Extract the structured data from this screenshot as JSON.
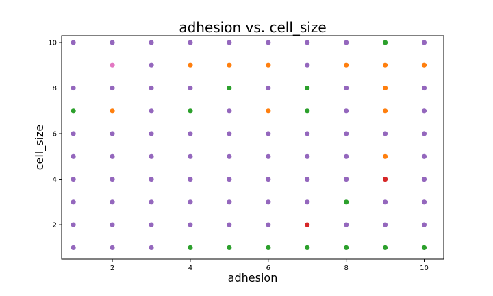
{
  "chart_data": {
    "type": "scatter",
    "title": "adhesion vs. cell_size",
    "xlabel": "adhesion",
    "ylabel": "cell_size",
    "xlim": [
      0.7,
      10.5
    ],
    "ylim": [
      0.5,
      10.3
    ],
    "xticks": [
      2,
      4,
      6,
      8,
      10
    ],
    "yticks": [
      2,
      4,
      6,
      8,
      10
    ],
    "grid": false,
    "colors": {
      "purple": "#9467bd",
      "orange": "#ff7f0e",
      "green": "#2ca02c",
      "red": "#d62728",
      "pink": "#e377c2"
    },
    "points": [
      {
        "x": 1,
        "y": 10,
        "c": "purple"
      },
      {
        "x": 2,
        "y": 10,
        "c": "purple"
      },
      {
        "x": 3,
        "y": 10,
        "c": "purple"
      },
      {
        "x": 4,
        "y": 10,
        "c": "purple"
      },
      {
        "x": 5,
        "y": 10,
        "c": "purple"
      },
      {
        "x": 6,
        "y": 10,
        "c": "purple"
      },
      {
        "x": 7,
        "y": 10,
        "c": "purple"
      },
      {
        "x": 8,
        "y": 10,
        "c": "purple"
      },
      {
        "x": 9,
        "y": 10,
        "c": "green"
      },
      {
        "x": 10,
        "y": 10,
        "c": "purple"
      },
      {
        "x": 2,
        "y": 9,
        "c": "pink"
      },
      {
        "x": 3,
        "y": 9,
        "c": "purple"
      },
      {
        "x": 4,
        "y": 9,
        "c": "orange"
      },
      {
        "x": 5,
        "y": 9,
        "c": "orange"
      },
      {
        "x": 6,
        "y": 9,
        "c": "orange"
      },
      {
        "x": 7,
        "y": 9,
        "c": "purple"
      },
      {
        "x": 8,
        "y": 9,
        "c": "orange"
      },
      {
        "x": 9,
        "y": 9,
        "c": "orange"
      },
      {
        "x": 10,
        "y": 9,
        "c": "orange"
      },
      {
        "x": 1,
        "y": 8,
        "c": "purple"
      },
      {
        "x": 2,
        "y": 8,
        "c": "purple"
      },
      {
        "x": 3,
        "y": 8,
        "c": "purple"
      },
      {
        "x": 4,
        "y": 8,
        "c": "purple"
      },
      {
        "x": 5,
        "y": 8,
        "c": "green"
      },
      {
        "x": 6,
        "y": 8,
        "c": "purple"
      },
      {
        "x": 7,
        "y": 8,
        "c": "green"
      },
      {
        "x": 8,
        "y": 8,
        "c": "purple"
      },
      {
        "x": 9,
        "y": 8,
        "c": "orange"
      },
      {
        "x": 10,
        "y": 8,
        "c": "purple"
      },
      {
        "x": 1,
        "y": 7,
        "c": "green"
      },
      {
        "x": 2,
        "y": 7,
        "c": "orange"
      },
      {
        "x": 3,
        "y": 7,
        "c": "purple"
      },
      {
        "x": 4,
        "y": 7,
        "c": "green"
      },
      {
        "x": 5,
        "y": 7,
        "c": "purple"
      },
      {
        "x": 6,
        "y": 7,
        "c": "orange"
      },
      {
        "x": 7,
        "y": 7,
        "c": "green"
      },
      {
        "x": 8,
        "y": 7,
        "c": "purple"
      },
      {
        "x": 9,
        "y": 7,
        "c": "orange"
      },
      {
        "x": 10,
        "y": 7,
        "c": "purple"
      },
      {
        "x": 1,
        "y": 6,
        "c": "purple"
      },
      {
        "x": 2,
        "y": 6,
        "c": "purple"
      },
      {
        "x": 3,
        "y": 6,
        "c": "purple"
      },
      {
        "x": 4,
        "y": 6,
        "c": "purple"
      },
      {
        "x": 5,
        "y": 6,
        "c": "purple"
      },
      {
        "x": 6,
        "y": 6,
        "c": "purple"
      },
      {
        "x": 7,
        "y": 6,
        "c": "purple"
      },
      {
        "x": 8,
        "y": 6,
        "c": "purple"
      },
      {
        "x": 9,
        "y": 6,
        "c": "purple"
      },
      {
        "x": 10,
        "y": 6,
        "c": "purple"
      },
      {
        "x": 1,
        "y": 5,
        "c": "purple"
      },
      {
        "x": 2,
        "y": 5,
        "c": "purple"
      },
      {
        "x": 3,
        "y": 5,
        "c": "purple"
      },
      {
        "x": 4,
        "y": 5,
        "c": "purple"
      },
      {
        "x": 5,
        "y": 5,
        "c": "purple"
      },
      {
        "x": 6,
        "y": 5,
        "c": "purple"
      },
      {
        "x": 7,
        "y": 5,
        "c": "purple"
      },
      {
        "x": 8,
        "y": 5,
        "c": "purple"
      },
      {
        "x": 9,
        "y": 5,
        "c": "orange"
      },
      {
        "x": 10,
        "y": 5,
        "c": "purple"
      },
      {
        "x": 1,
        "y": 4,
        "c": "purple"
      },
      {
        "x": 2,
        "y": 4,
        "c": "purple"
      },
      {
        "x": 3,
        "y": 4,
        "c": "purple"
      },
      {
        "x": 4,
        "y": 4,
        "c": "purple"
      },
      {
        "x": 5,
        "y": 4,
        "c": "purple"
      },
      {
        "x": 6,
        "y": 4,
        "c": "purple"
      },
      {
        "x": 7,
        "y": 4,
        "c": "purple"
      },
      {
        "x": 8,
        "y": 4,
        "c": "purple"
      },
      {
        "x": 9,
        "y": 4,
        "c": "red"
      },
      {
        "x": 10,
        "y": 4,
        "c": "purple"
      },
      {
        "x": 1,
        "y": 3,
        "c": "purple"
      },
      {
        "x": 2,
        "y": 3,
        "c": "purple"
      },
      {
        "x": 3,
        "y": 3,
        "c": "purple"
      },
      {
        "x": 4,
        "y": 3,
        "c": "purple"
      },
      {
        "x": 5,
        "y": 3,
        "c": "purple"
      },
      {
        "x": 6,
        "y": 3,
        "c": "purple"
      },
      {
        "x": 7,
        "y": 3,
        "c": "purple"
      },
      {
        "x": 8,
        "y": 3,
        "c": "green"
      },
      {
        "x": 9,
        "y": 3,
        "c": "purple"
      },
      {
        "x": 10,
        "y": 3,
        "c": "purple"
      },
      {
        "x": 1,
        "y": 2,
        "c": "purple"
      },
      {
        "x": 2,
        "y": 2,
        "c": "purple"
      },
      {
        "x": 3,
        "y": 2,
        "c": "purple"
      },
      {
        "x": 4,
        "y": 2,
        "c": "purple"
      },
      {
        "x": 5,
        "y": 2,
        "c": "purple"
      },
      {
        "x": 6,
        "y": 2,
        "c": "purple"
      },
      {
        "x": 7,
        "y": 2,
        "c": "red"
      },
      {
        "x": 8,
        "y": 2,
        "c": "purple"
      },
      {
        "x": 9,
        "y": 2,
        "c": "purple"
      },
      {
        "x": 10,
        "y": 2,
        "c": "purple"
      },
      {
        "x": 1,
        "y": 1,
        "c": "purple"
      },
      {
        "x": 2,
        "y": 1,
        "c": "purple"
      },
      {
        "x": 3,
        "y": 1,
        "c": "purple"
      },
      {
        "x": 4,
        "y": 1,
        "c": "green"
      },
      {
        "x": 5,
        "y": 1,
        "c": "green"
      },
      {
        "x": 6,
        "y": 1,
        "c": "green"
      },
      {
        "x": 7,
        "y": 1,
        "c": "green"
      },
      {
        "x": 8,
        "y": 1,
        "c": "green"
      },
      {
        "x": 9,
        "y": 1,
        "c": "green"
      },
      {
        "x": 10,
        "y": 1,
        "c": "green"
      }
    ]
  }
}
